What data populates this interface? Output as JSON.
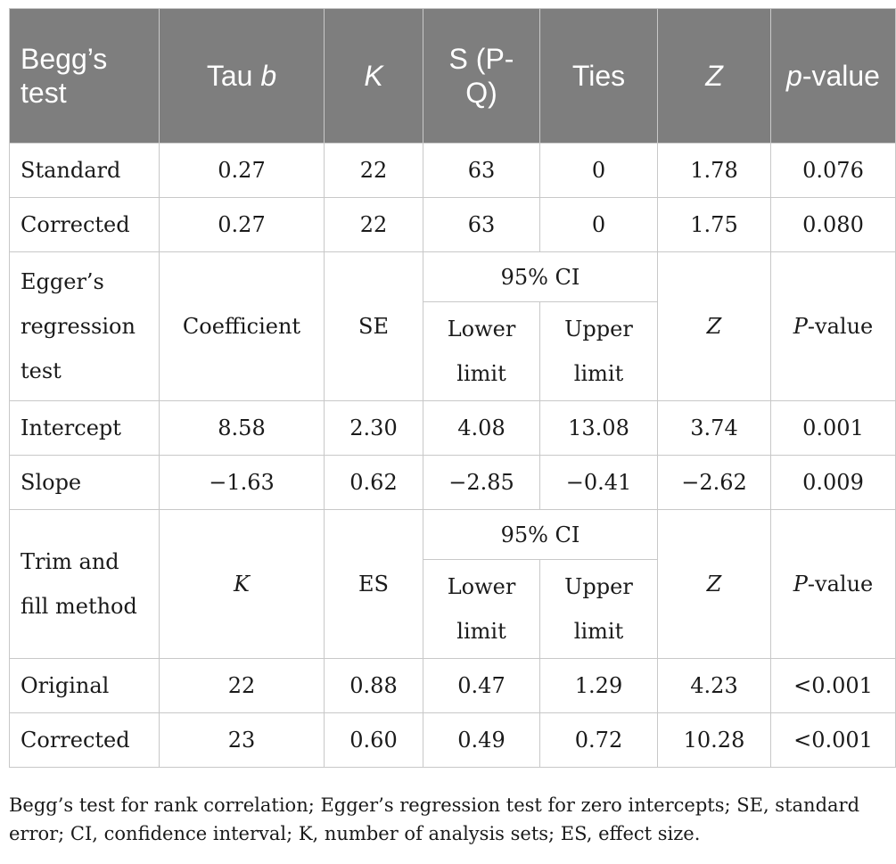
{
  "header": {
    "col1": "Begg’s test",
    "col2_a": "Tau ",
    "col2_b": "b",
    "col3": "K",
    "col4": "S (P-Q)",
    "col5": "Ties",
    "col6": "Z",
    "col7_a": "p",
    "col7_b": "-value"
  },
  "begg_rows": [
    {
      "label": "Standard",
      "tau": "0.27",
      "k": "22",
      "s": "63",
      "ties": "0",
      "z": "1.78",
      "p": "0.076"
    },
    {
      "label": "Corrected",
      "tau": "0.27",
      "k": "22",
      "s": "63",
      "ties": "0",
      "z": "1.75",
      "p": "0.080"
    }
  ],
  "egger_header": {
    "label": "Egger’s regression test",
    "coef": "Coefficient",
    "se": "SE",
    "ci": "95% CI",
    "lower": "Lower limit",
    "upper": "Upper limit",
    "z": "Z",
    "p_a": "P",
    "p_b": "-value"
  },
  "egger_rows": [
    {
      "label": "Intercept",
      "coef": "8.58",
      "se": "2.30",
      "lower": "4.08",
      "upper": "13.08",
      "z": "3.74",
      "p": "0.001"
    },
    {
      "label": "Slope",
      "coef": "−1.63",
      "se": "0.62",
      "lower": "−2.85",
      "upper": "−0.41",
      "z": "−2.62",
      "p": "0.009"
    }
  ],
  "trim_header": {
    "label": "Trim and fill method",
    "k": "K",
    "es": "ES",
    "ci": "95% CI",
    "lower": "Lower limit",
    "upper": "Upper limit",
    "z": "Z",
    "p_a": "P",
    "p_b": "-value"
  },
  "trim_rows": [
    {
      "label": "Original",
      "k": "22",
      "es": "0.88",
      "lower": "0.47",
      "upper": "1.29",
      "z": "4.23",
      "p": "<0.001"
    },
    {
      "label": "Corrected",
      "k": "23",
      "es": "0.60",
      "lower": "0.49",
      "upper": "0.72",
      "z": "10.28",
      "p": "<0.001"
    }
  ],
  "footnote": "Begg’s test for rank correlation; Egger’s regression test for zero intercepts; SE, standard error; CI, confidence interval; K, number of analysis sets; ES, effect size."
}
